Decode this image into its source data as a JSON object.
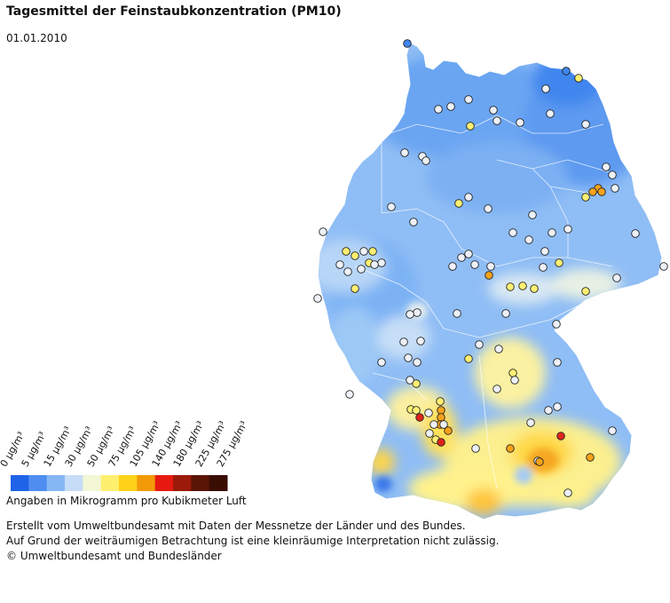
{
  "header": {
    "title": "Tagesmittel der Feinstaubkonzentration (PM10)",
    "date": "01.01.2010"
  },
  "legend": {
    "ticks": [
      "0 µg/m³",
      "5 µg/m³",
      "15 µg/m³",
      "30 µg/m³",
      "50 µg/m³",
      "75 µg/m³",
      "105 µg/m³",
      "140 µg/m³",
      "180 µg/m³",
      "225 µg/m³",
      "275 µg/m³"
    ],
    "colors": [
      "#1f63e8",
      "#4f8ef0",
      "#86b7f5",
      "#c7dcf7",
      "#f3f7d6",
      "#ffef6e",
      "#ffd21a",
      "#f29a08",
      "#e61a10",
      "#9c1a0a",
      "#5a1505",
      "#3a0d03"
    ],
    "unit": "Angaben in Mikrogramm pro Kubikmeter Luft"
  },
  "footer": {
    "line1": "Erstellt vom Umweltbundesamt mit Daten der Messnetze der Länder und des Bundes.",
    "line2": "Auf Grund der weiträumigen Betrachtung ist eine kleinräumige Interpretation nicht zulässig.",
    "line3": "© Umweltbundesamt und Bundesländer"
  },
  "map": {
    "region": "Germany",
    "background_color": "#8fbdf5",
    "station_counts": {
      "blue": 2,
      "white": 94,
      "yellow": 21,
      "orange": 14,
      "red": 4
    }
  }
}
